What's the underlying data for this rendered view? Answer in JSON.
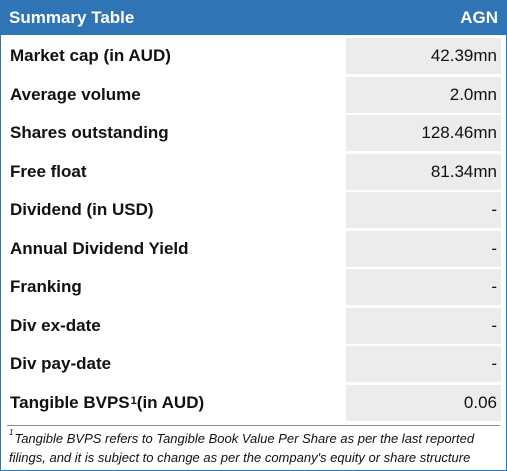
{
  "colors": {
    "header_bg": "#2f75b5",
    "header_text": "#ffffff",
    "value_bg": "#ececec",
    "border": "#2f75b5"
  },
  "table": {
    "title": "Summary Table",
    "ticker": "AGN",
    "rows": [
      {
        "label": "Market cap (in AUD)",
        "value": "42.39mn"
      },
      {
        "label": "Average volume",
        "value": "2.0mn"
      },
      {
        "label": "Shares outstanding",
        "value": "128.46mn"
      },
      {
        "label": "Free float",
        "value": "81.34mn"
      },
      {
        "label": "Dividend (in USD)",
        "value": "-"
      },
      {
        "label": "Annual Dividend Yield",
        "value": "-"
      },
      {
        "label": "Franking",
        "value": "-"
      },
      {
        "label": "Div ex-date",
        "value": "-"
      },
      {
        "label": "Div pay-date",
        "value": "-"
      },
      {
        "label": "Tangible BVPS",
        "label_sup": "1",
        "label_suffix": " (in AUD)",
        "value": "0.06"
      }
    ]
  },
  "footnote": {
    "marker": "1",
    "line1": "Tangible BVPS refers to Tangible Book Value Per Share as per the last reported",
    "line2": "filings, and it is subject to change as per the company's equity or share structure"
  }
}
